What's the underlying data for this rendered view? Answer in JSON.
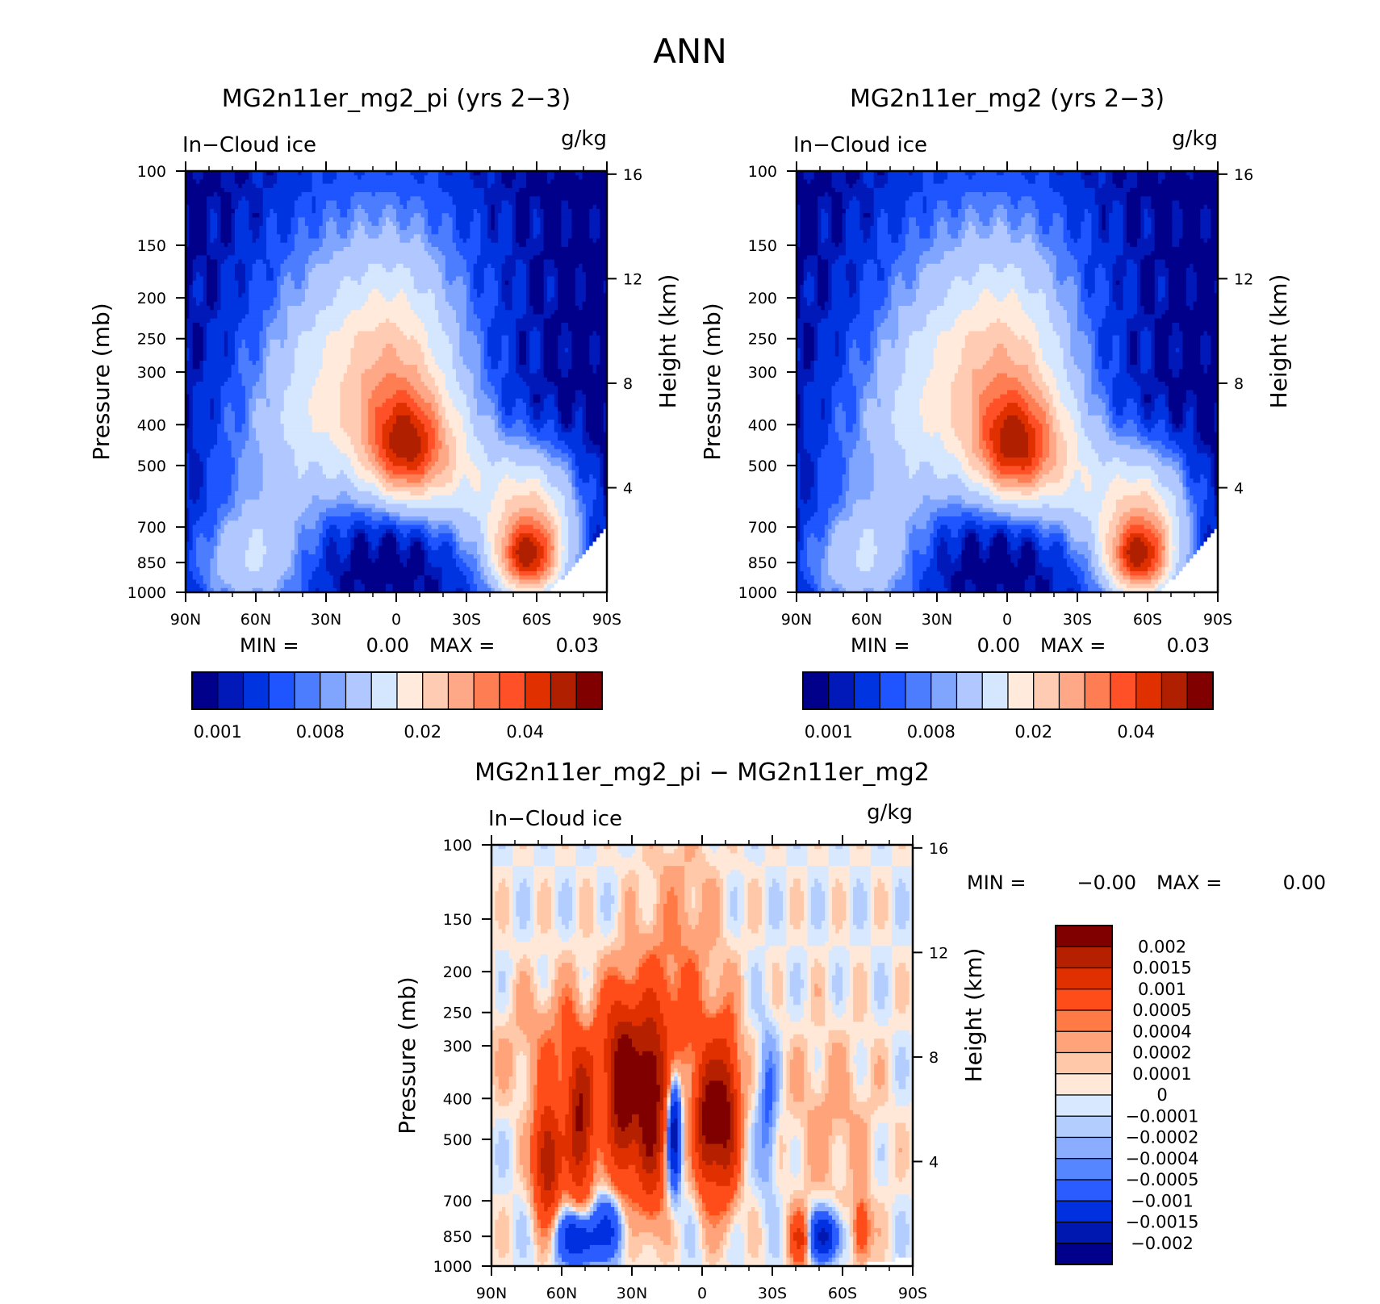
{
  "figure_title": "ANN",
  "chart_data": [
    {
      "type": "heatmap",
      "title": "MG2n11er_mg2_pi (yrs 2-3)",
      "variable_label": "In-Cloud ice",
      "units": "g/kg",
      "ylabel": "Pressure (mb)",
      "ylabel_right": "Height (km)",
      "x_ticks": [
        "90N",
        "60N",
        "30N",
        "0",
        "30S",
        "60S",
        "90S"
      ],
      "y_ticks": [
        "100",
        "150",
        "200",
        "250",
        "300",
        "400",
        "500",
        "700",
        "850",
        "1000"
      ],
      "y2_ticks": [
        "16",
        "12",
        "8",
        "4"
      ],
      "stats": {
        "min_label": "MIN =",
        "min_value": "0.00",
        "max_label": "MAX =",
        "max_value": "0.03"
      },
      "colorbar_labels": [
        "0.001",
        "0.008",
        "0.02",
        "0.04"
      ],
      "colorbar_colors": [
        "#00008a",
        "#0019b8",
        "#0034e0",
        "#1e55ff",
        "#4d7dff",
        "#80a5ff",
        "#b0c8ff",
        "#d5e6ff",
        "#ffeadc",
        "#ffcbb3",
        "#ffa888",
        "#ff7d52",
        "#ff5028",
        "#e03000",
        "#b02000",
        "#800000"
      ],
      "field_features": [
        "tropical ice maximum near 500 mb, 0-10N",
        "southern high-latitude low-level maximum near 850 mb, 55-60S",
        "no data over Antarctic surface 65S-90S"
      ]
    },
    {
      "type": "heatmap",
      "title": "MG2n11er_mg2 (yrs 2-3)",
      "variable_label": "In-Cloud ice",
      "units": "g/kg",
      "ylabel": "Pressure (mb)",
      "ylabel_right": "Height (km)",
      "x_ticks": [
        "90N",
        "60N",
        "30N",
        "0",
        "30S",
        "60S",
        "90S"
      ],
      "y_ticks": [
        "100",
        "150",
        "200",
        "250",
        "300",
        "400",
        "500",
        "700",
        "850",
        "1000"
      ],
      "y2_ticks": [
        "16",
        "12",
        "8",
        "4"
      ],
      "stats": {
        "min_label": "MIN =",
        "min_value": "0.00",
        "max_label": "MAX =",
        "max_value": "0.03"
      },
      "colorbar_labels": [
        "0.001",
        "0.008",
        "0.02",
        "0.04"
      ],
      "colorbar_colors": [
        "#00008a",
        "#0019b8",
        "#0034e0",
        "#1e55ff",
        "#4d7dff",
        "#80a5ff",
        "#b0c8ff",
        "#d5e6ff",
        "#ffeadc",
        "#ffcbb3",
        "#ffa888",
        "#ff7d52",
        "#ff5028",
        "#e03000",
        "#b02000",
        "#800000"
      ]
    },
    {
      "type": "heatmap",
      "title": "MG2n11er_mg2_pi - MG2n11er_mg2",
      "variable_label": "In-Cloud ice",
      "units": "g/kg",
      "ylabel": "Pressure (mb)",
      "ylabel_right": "Height (km)",
      "x_ticks": [
        "90N",
        "60N",
        "30N",
        "0",
        "30S",
        "60S",
        "90S"
      ],
      "y_ticks": [
        "100",
        "150",
        "200",
        "250",
        "300",
        "400",
        "500",
        "700",
        "850",
        "1000"
      ],
      "y2_ticks": [
        "16",
        "12",
        "8",
        "4"
      ],
      "stats": {
        "min_label": "MIN =",
        "min_value": "-0.00",
        "max_label": "MAX =",
        "max_value": "0.00"
      },
      "colorbar_labels": [
        "0.002",
        "0.0015",
        "0.001",
        "0.0005",
        "0.0004",
        "0.0002",
        "0.0001",
        "0",
        "-0.0001",
        "-0.0002",
        "-0.0004",
        "-0.0005",
        "-0.001",
        "-0.0015",
        "-0.002"
      ],
      "colorbar_colors": [
        "#800000",
        "#b52000",
        "#e03000",
        "#ff4d1a",
        "#ff7a45",
        "#ffa47a",
        "#ffc8a8",
        "#ffe8d8",
        "#d8e8ff",
        "#b3cdff",
        "#8aadff",
        "#5585ff",
        "#2a5cff",
        "#0030e0",
        "#0018b0",
        "#00008a"
      ]
    }
  ]
}
